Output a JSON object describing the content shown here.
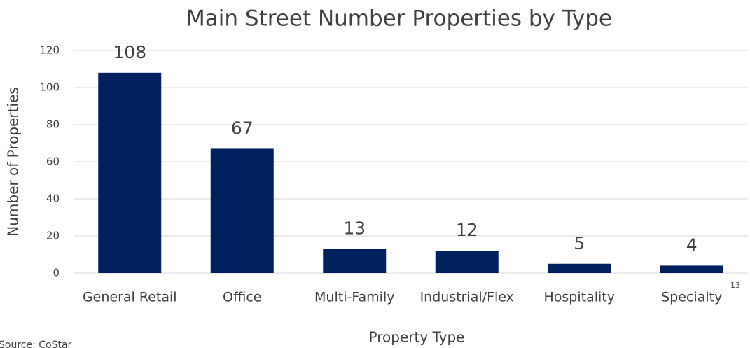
{
  "chart_data": {
    "type": "bar",
    "title": "Main Street Number Properties by Type",
    "x_label": "Property Type",
    "y_label": "Number of Properties",
    "categories": [
      "General Retail",
      "Office",
      "Multi-Family",
      "Industrial/Flex",
      "Hospitality",
      "Specialty"
    ],
    "values": [
      108,
      67,
      13,
      12,
      5,
      4
    ],
    "color": "#002060",
    "ylim": [
      0,
      120
    ],
    "yticks": [
      0,
      20,
      40,
      60,
      80,
      100,
      120
    ],
    "grid": true,
    "source": "Source: CoStar",
    "page_number": "13"
  }
}
